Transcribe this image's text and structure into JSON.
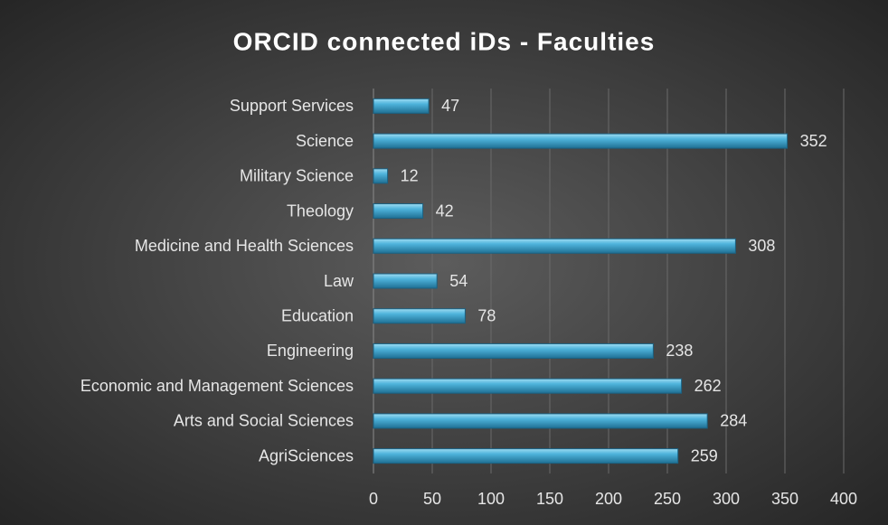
{
  "chart_data": {
    "type": "bar",
    "orientation": "horizontal",
    "title": "ORCID connected iDs - Faculties",
    "categories": [
      "Support Services",
      "Science",
      "Military Science",
      "Theology",
      "Medicine and Health Sciences",
      "Law",
      "Education",
      "Engineering",
      "Economic and Management Sciences",
      "Arts and Social Sciences",
      "AgriSciences"
    ],
    "values": [
      47,
      352,
      12,
      42,
      308,
      54,
      78,
      238,
      262,
      284,
      259
    ],
    "color": "#3ea3cf",
    "xlim": [
      0,
      400
    ],
    "xticks": [
      0,
      50,
      100,
      150,
      200,
      250,
      300,
      350,
      400
    ],
    "grid": true
  }
}
